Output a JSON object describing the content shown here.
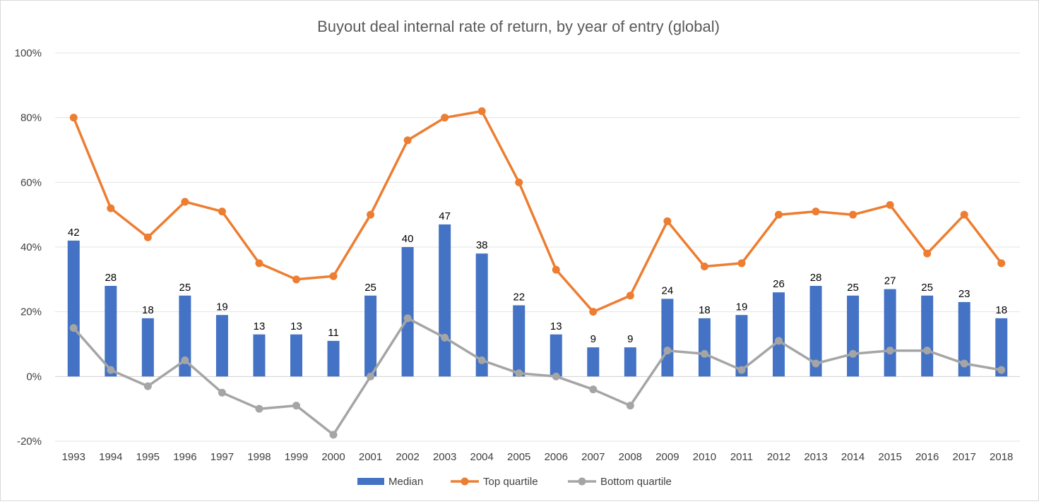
{
  "chart_data": {
    "type": "bar",
    "title": "Buyout deal internal rate of return, by year of entry (global)",
    "xlabel": "",
    "ylabel": "",
    "categories": [
      "1993",
      "1994",
      "1995",
      "1996",
      "1997",
      "1998",
      "1999",
      "2000",
      "2001",
      "2002",
      "2003",
      "2004",
      "2005",
      "2006",
      "2007",
      "2008",
      "2009",
      "2010",
      "2011",
      "2012",
      "2013",
      "2014",
      "2015",
      "2016",
      "2017",
      "2018"
    ],
    "ylim": [
      -20,
      100
    ],
    "yticks": [
      -20,
      0,
      20,
      40,
      60,
      80,
      100
    ],
    "ytick_labels": [
      "-20%",
      "0%",
      "20%",
      "40%",
      "60%",
      "80%",
      "100%"
    ],
    "grid": true,
    "legend_position": "bottom",
    "series": [
      {
        "name": "Median",
        "type": "bar",
        "color": "#4472c4",
        "data_labels": true,
        "values": [
          42,
          28,
          18,
          25,
          19,
          13,
          13,
          11,
          25,
          40,
          47,
          38,
          22,
          13,
          9,
          9,
          24,
          18,
          19,
          26,
          28,
          25,
          27,
          25,
          23,
          18
        ]
      },
      {
        "name": "Top quartile",
        "type": "line",
        "color": "#ed7d31",
        "values": [
          80,
          52,
          43,
          54,
          51,
          35,
          30,
          31,
          50,
          73,
          80,
          82,
          60,
          33,
          20,
          25,
          48,
          34,
          35,
          50,
          51,
          50,
          53,
          38,
          50,
          35
        ]
      },
      {
        "name": "Bottom quartile",
        "type": "line",
        "color": "#a5a5a5",
        "values": [
          15,
          2,
          -3,
          5,
          -5,
          -10,
          -9,
          -18,
          0,
          18,
          12,
          5,
          1,
          0,
          -4,
          -9,
          8,
          7,
          2,
          11,
          4,
          7,
          8,
          8,
          4,
          2
        ]
      }
    ]
  }
}
